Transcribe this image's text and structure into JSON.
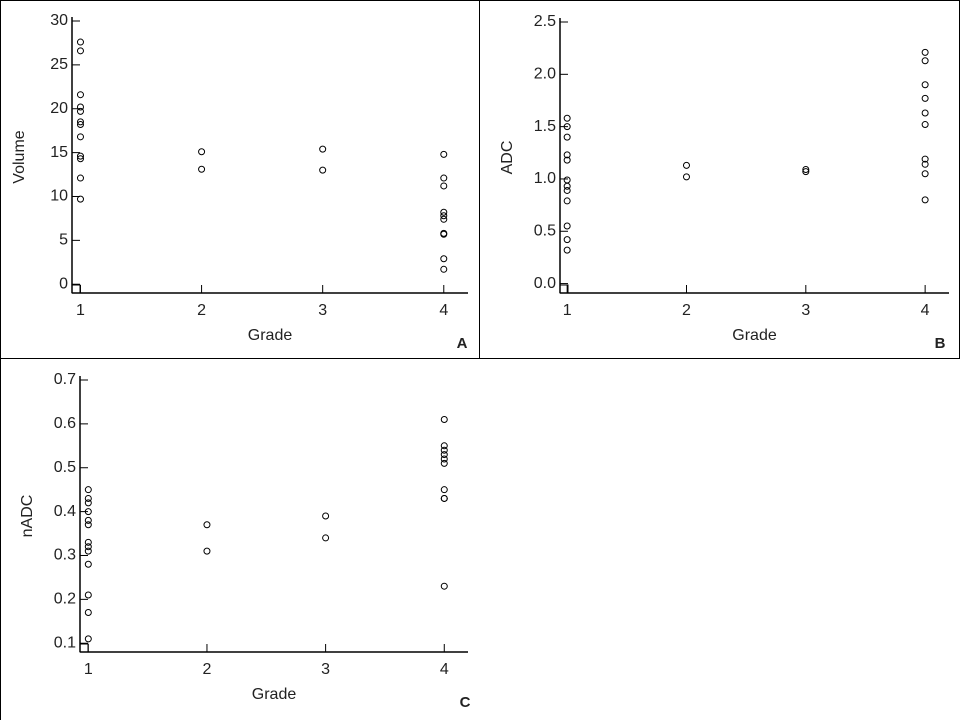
{
  "chart_data": [
    {
      "type": "scatter",
      "panel_label": "A",
      "xlabel": "Grade",
      "ylabel": "Volume",
      "x": [
        1,
        1,
        1,
        1,
        1,
        1,
        1,
        1,
        1,
        1,
        1,
        1,
        2,
        2,
        3,
        3,
        4,
        4,
        4,
        4,
        4,
        4,
        4,
        4,
        4,
        4
      ],
      "values": [
        27.6,
        26.6,
        21.6,
        20.2,
        19.7,
        18.5,
        18.2,
        16.8,
        14.6,
        14.3,
        12.1,
        9.7,
        15.1,
        13.1,
        15.4,
        13.0,
        14.8,
        12.1,
        11.2,
        8.2,
        7.8,
        7.4,
        5.8,
        5.7,
        2.9,
        1.7
      ],
      "xlim": [
        0.93,
        4.2
      ],
      "xticks": [
        1,
        2,
        3,
        4
      ],
      "ylim": [
        -1,
        30
      ],
      "yticks": [
        0,
        5,
        10,
        15,
        20,
        25,
        30
      ],
      "color": "#000000"
    },
    {
      "type": "scatter",
      "panel_label": "B",
      "xlabel": "Grade",
      "ylabel": "ADC",
      "x": [
        1,
        1,
        1,
        1,
        1,
        1,
        1,
        1,
        1,
        1,
        1,
        1,
        2,
        2,
        3,
        3,
        4,
        4,
        4,
        4,
        4,
        4,
        4,
        4,
        4,
        4
      ],
      "values": [
        1.58,
        1.5,
        1.4,
        1.23,
        1.18,
        0.99,
        0.93,
        0.89,
        0.79,
        0.55,
        0.42,
        0.32,
        1.13,
        1.02,
        1.09,
        1.07,
        2.21,
        2.13,
        1.9,
        1.77,
        1.63,
        1.52,
        1.19,
        1.14,
        1.05,
        0.8
      ],
      "xlim": [
        0.94,
        4.2
      ],
      "xticks": [
        1,
        2,
        3,
        4
      ],
      "ylim": [
        -0.09,
        2.5
      ],
      "yticks": [
        {
          "value": 0,
          "label": "0.0"
        },
        0.5,
        {
          "value": 1,
          "label": "1.0"
        },
        1.5,
        {
          "value": 2,
          "label": "2.0"
        },
        2.5
      ],
      "color": "#000000"
    },
    {
      "type": "scatter",
      "panel_label": "C",
      "xlabel": "Grade",
      "ylabel": "nADC",
      "x": [
        1,
        1,
        1,
        1,
        1,
        1,
        1,
        1,
        1,
        1,
        1,
        1,
        1,
        2,
        2,
        3,
        3,
        4,
        4,
        4,
        4,
        4,
        4,
        4,
        4,
        4,
        4
      ],
      "values": [
        0.45,
        0.43,
        0.42,
        0.4,
        0.38,
        0.37,
        0.33,
        0.32,
        0.31,
        0.28,
        0.21,
        0.17,
        0.11,
        0.37,
        0.31,
        0.39,
        0.34,
        0.61,
        0.55,
        0.54,
        0.53,
        0.52,
        0.51,
        0.45,
        0.43,
        0.43,
        0.23
      ],
      "xlim": [
        0.93,
        4.2
      ],
      "xticks": [
        1,
        2,
        3,
        4
      ],
      "ylim": [
        0.08,
        0.7
      ],
      "yticks": [
        0.1,
        0.2,
        0.3,
        0.4,
        0.5,
        0.6,
        0.7
      ],
      "color": "#000000"
    }
  ]
}
